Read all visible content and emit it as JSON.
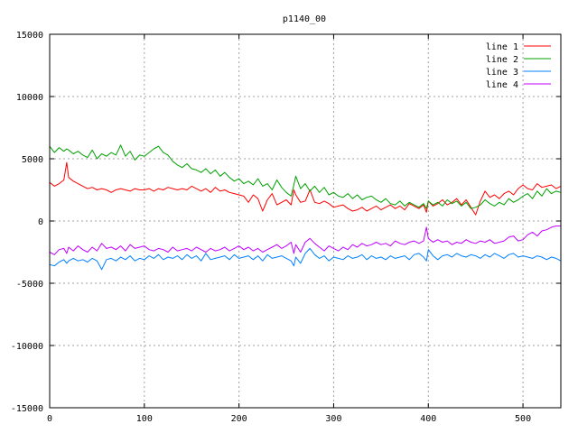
{
  "chart_data": {
    "type": "line",
    "title": "p1140_00",
    "xlabel": "",
    "ylabel": "",
    "xlim": [
      0,
      540
    ],
    "ylim": [
      -15000,
      15000
    ],
    "xticks": [
      0,
      100,
      200,
      300,
      400,
      500
    ],
    "yticks": [
      -15000,
      -10000,
      -5000,
      0,
      5000,
      10000,
      15000
    ],
    "grid": true,
    "legend_position": "top-right",
    "x": [
      0,
      5,
      10,
      15,
      18,
      20,
      25,
      30,
      35,
      40,
      45,
      50,
      55,
      60,
      65,
      70,
      75,
      80,
      85,
      90,
      95,
      100,
      105,
      110,
      115,
      120,
      125,
      130,
      135,
      140,
      145,
      150,
      155,
      160,
      165,
      170,
      175,
      180,
      185,
      190,
      195,
      200,
      205,
      210,
      215,
      220,
      225,
      230,
      235,
      240,
      245,
      250,
      255,
      258,
      260,
      265,
      270,
      275,
      280,
      285,
      290,
      295,
      300,
      305,
      310,
      315,
      320,
      325,
      330,
      335,
      340,
      345,
      350,
      355,
      360,
      365,
      370,
      375,
      380,
      385,
      390,
      395,
      398,
      400,
      405,
      410,
      415,
      420,
      425,
      430,
      435,
      440,
      445,
      450,
      455,
      460,
      465,
      470,
      475,
      480,
      485,
      490,
      495,
      500,
      505,
      510,
      515,
      520,
      525,
      530,
      535,
      540
    ],
    "series": [
      {
        "name": "line 1",
        "color": "#ff0000",
        "values": [
          3100,
          2800,
          3000,
          3300,
          4700,
          3500,
          3200,
          3000,
          2800,
          2600,
          2700,
          2500,
          2600,
          2500,
          2300,
          2500,
          2600,
          2500,
          2400,
          2600,
          2500,
          2500,
          2600,
          2400,
          2600,
          2500,
          2700,
          2600,
          2500,
          2600,
          2500,
          2800,
          2600,
          2400,
          2600,
          2300,
          2700,
          2400,
          2500,
          2300,
          2200,
          2100,
          2000,
          1500,
          2100,
          1800,
          800,
          1700,
          2200,
          1300,
          1500,
          1700,
          1300,
          2500,
          2100,
          1500,
          1600,
          2500,
          1500,
          1400,
          1600,
          1400,
          1100,
          1200,
          1300,
          1000,
          800,
          900,
          1100,
          800,
          1000,
          1200,
          900,
          1100,
          1300,
          1000,
          1200,
          900,
          1400,
          1200,
          1000,
          1300,
          700,
          1600,
          1200,
          1400,
          1700,
          1300,
          1500,
          1800,
          1300,
          1700,
          1100,
          500,
          1600,
          2400,
          1900,
          2100,
          1800,
          2200,
          2400,
          2100,
          2600,
          2900,
          2600,
          2500,
          3000,
          2700,
          2800,
          2900,
          2600,
          2800
        ]
      },
      {
        "name": "line 2",
        "color": "#00a000",
        "values": [
          6000,
          5500,
          5900,
          5600,
          5800,
          5700,
          5400,
          5600,
          5300,
          5100,
          5700,
          5000,
          5400,
          5200,
          5500,
          5300,
          6100,
          5200,
          5600,
          4900,
          5300,
          5200,
          5500,
          5800,
          6000,
          5500,
          5300,
          4800,
          4500,
          4300,
          4600,
          4200,
          4100,
          3900,
          4200,
          3800,
          4100,
          3600,
          3900,
          3500,
          3200,
          3400,
          3000,
          3200,
          2900,
          3400,
          2800,
          3000,
          2500,
          3300,
          2700,
          2300,
          2000,
          2900,
          3600,
          2600,
          3000,
          2400,
          2800,
          2300,
          2700,
          2100,
          2300,
          2000,
          1900,
          2200,
          1800,
          2100,
          1700,
          1900,
          2000,
          1700,
          1500,
          1800,
          1400,
          1300,
          1600,
          1200,
          1500,
          1300,
          1100,
          1400,
          1000,
          1600,
          1300,
          1500,
          1200,
          1700,
          1400,
          1600,
          1200,
          1500,
          1000,
          1100,
          1300,
          1700,
          1400,
          1200,
          1500,
          1300,
          1800,
          1500,
          1700,
          2000,
          2200,
          1800,
          2400,
          2000,
          2600,
          2200,
          2400,
          2300
        ]
      },
      {
        "name": "line 3",
        "color": "#0080ff",
        "values": [
          -3500,
          -3600,
          -3300,
          -3100,
          -3400,
          -3200,
          -3000,
          -3200,
          -3100,
          -3300,
          -3000,
          -3200,
          -3900,
          -3100,
          -3000,
          -3200,
          -2900,
          -3100,
          -2800,
          -3200,
          -3000,
          -3100,
          -2800,
          -3000,
          -2700,
          -3100,
          -2900,
          -3000,
          -2800,
          -3100,
          -2700,
          -3000,
          -2800,
          -3200,
          -2600,
          -3100,
          -3000,
          -2900,
          -2800,
          -3100,
          -2700,
          -3000,
          -2900,
          -2800,
          -3100,
          -2800,
          -3200,
          -2700,
          -3000,
          -2900,
          -2800,
          -3000,
          -3200,
          -3600,
          -2900,
          -3400,
          -2600,
          -2200,
          -2700,
          -3000,
          -2800,
          -3200,
          -2900,
          -3000,
          -3100,
          -2800,
          -3000,
          -2900,
          -2700,
          -3100,
          -2800,
          -3000,
          -2900,
          -3100,
          -2800,
          -3000,
          -2900,
          -2800,
          -3100,
          -2700,
          -2600,
          -2900,
          -3200,
          -2300,
          -2800,
          -3100,
          -2800,
          -2700,
          -2900,
          -2600,
          -2800,
          -2900,
          -2700,
          -2800,
          -3000,
          -2700,
          -2900,
          -2600,
          -2800,
          -3000,
          -2700,
          -2600,
          -2900,
          -2800,
          -2900,
          -3000,
          -2800,
          -2900,
          -3100,
          -2900,
          -3000,
          -3200
        ]
      },
      {
        "name": "line 4",
        "color": "#c000ff",
        "values": [
          -2500,
          -2700,
          -2300,
          -2200,
          -2600,
          -2100,
          -2400,
          -2000,
          -2300,
          -2500,
          -2100,
          -2400,
          -1800,
          -2200,
          -2100,
          -2300,
          -2000,
          -2400,
          -1900,
          -2200,
          -2100,
          -2000,
          -2300,
          -2400,
          -2200,
          -2300,
          -2500,
          -2100,
          -2400,
          -2300,
          -2200,
          -2400,
          -2100,
          -2300,
          -2500,
          -2200,
          -2400,
          -2300,
          -2100,
          -2400,
          -2200,
          -2000,
          -2300,
          -2100,
          -2400,
          -2200,
          -2500,
          -2300,
          -2100,
          -1900,
          -2200,
          -2000,
          -1700,
          -2600,
          -1900,
          -2500,
          -1700,
          -1400,
          -1800,
          -2100,
          -2400,
          -2000,
          -2200,
          -2400,
          -2100,
          -2300,
          -1900,
          -2100,
          -1800,
          -2000,
          -1900,
          -1700,
          -1900,
          -1800,
          -2000,
          -1600,
          -1800,
          -1900,
          -1700,
          -1600,
          -1800,
          -1600,
          -500,
          -1400,
          -1700,
          -1500,
          -1700,
          -1600,
          -1900,
          -1700,
          -1800,
          -1500,
          -1700,
          -1800,
          -1600,
          -1700,
          -1500,
          -1800,
          -1700,
          -1600,
          -1300,
          -1200,
          -1600,
          -1500,
          -1100,
          -900,
          -1200,
          -800,
          -700,
          -500,
          -400,
          -400
        ]
      }
    ]
  }
}
